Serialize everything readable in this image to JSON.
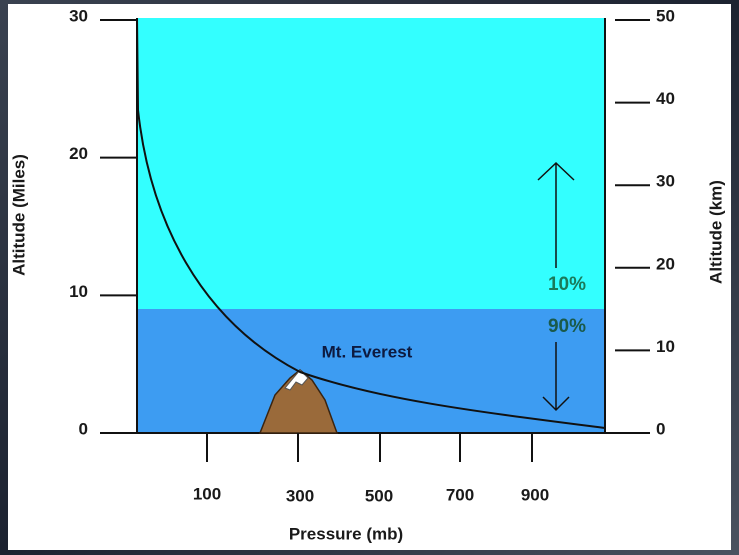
{
  "left_axis": {
    "label": "Altitude (Miles)",
    "range": [
      0,
      30
    ],
    "ticks": [
      0,
      10,
      20,
      30
    ]
  },
  "right_axis": {
    "label": "Altitude (km)",
    "range": [
      0,
      50
    ],
    "ticks": [
      0,
      10,
      20,
      30,
      40,
      50
    ]
  },
  "x_axis": {
    "label": "Pressure (mb)",
    "ticks": [
      "100",
      "300",
      "500",
      "700",
      "900"
    ]
  },
  "annotations": {
    "upper": "10%",
    "lower": "90%",
    "mountain": "Mt. Everest"
  }
}
